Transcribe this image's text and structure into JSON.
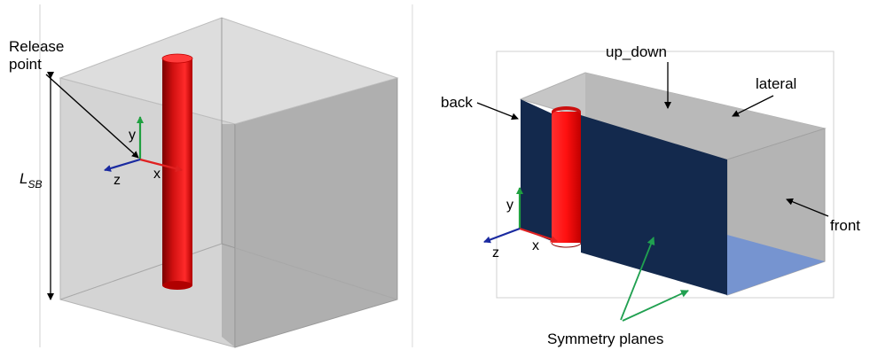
{
  "left_panel": {
    "release_label_line1": "Release",
    "release_label_line2": "point",
    "length_label": "L",
    "length_subscript": "SB",
    "axes": {
      "x": "x",
      "y": "y",
      "z": "z"
    }
  },
  "right_panel": {
    "label_back": "back",
    "label_up_down": "up_down",
    "label_lateral": "lateral",
    "label_front": "front",
    "label_symmetry": "Symmetry planes",
    "axes": {
      "x": "x",
      "y": "y",
      "z": "z"
    }
  },
  "colors": {
    "box_face": "#c8c8c8",
    "box_side": "#a8a8a8",
    "cylinder": "#ff1a1a",
    "symmetry_plane": "#13294d",
    "floor": "#7694d0",
    "axis_x": "#e02020",
    "axis_y": "#20a040",
    "axis_z": "#1a2aa0",
    "annotation_green": "#20a050"
  }
}
